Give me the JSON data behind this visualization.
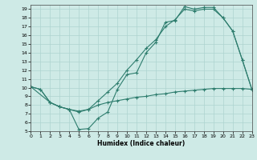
{
  "xlabel": "Humidex (Indice chaleur)",
  "xlim": [
    0,
    23
  ],
  "ylim": [
    5,
    19.5
  ],
  "yticks": [
    5,
    6,
    7,
    8,
    9,
    10,
    11,
    12,
    13,
    14,
    15,
    16,
    17,
    18,
    19
  ],
  "xticks": [
    0,
    1,
    2,
    3,
    4,
    5,
    6,
    7,
    8,
    9,
    10,
    11,
    12,
    13,
    14,
    15,
    16,
    17,
    18,
    19,
    20,
    21,
    22,
    23
  ],
  "line_color": "#2e7d6e",
  "bg_color": "#ceeae6",
  "grid_color": "#aed4d0",
  "line1_x": [
    0,
    1,
    2,
    3,
    4,
    5,
    6,
    7,
    8,
    9,
    10,
    11,
    12,
    13,
    14,
    15,
    16,
    17,
    18,
    19,
    20,
    21,
    22,
    23
  ],
  "line1_y": [
    10.1,
    9.8,
    8.3,
    7.8,
    7.5,
    5.2,
    5.3,
    6.5,
    7.2,
    9.8,
    11.5,
    11.7,
    14.0,
    15.2,
    17.5,
    17.7,
    19.3,
    19.0,
    19.2,
    19.2,
    18.0,
    16.5,
    13.2,
    9.8
  ],
  "line2_x": [
    0,
    2,
    3,
    4,
    5,
    6,
    7,
    8,
    9,
    10,
    11,
    12,
    13,
    14,
    15,
    16,
    17,
    18,
    19,
    20,
    21,
    22,
    23
  ],
  "line2_y": [
    10.1,
    8.3,
    7.8,
    7.5,
    7.3,
    7.5,
    8.5,
    9.5,
    10.5,
    12.0,
    13.2,
    14.5,
    15.5,
    17.0,
    17.8,
    19.0,
    18.8,
    19.0,
    19.0,
    18.0,
    16.5,
    13.2,
    9.8
  ],
  "line3_x": [
    0,
    1,
    2,
    3,
    4,
    5,
    6,
    7,
    8,
    9,
    10,
    11,
    12,
    13,
    14,
    15,
    16,
    17,
    18,
    19,
    20,
    21,
    22,
    23
  ],
  "line3_y": [
    10.1,
    9.8,
    8.3,
    7.8,
    7.5,
    7.2,
    7.5,
    8.0,
    8.3,
    8.5,
    8.7,
    8.9,
    9.0,
    9.2,
    9.3,
    9.5,
    9.6,
    9.7,
    9.8,
    9.9,
    9.9,
    9.9,
    9.9,
    9.8
  ]
}
